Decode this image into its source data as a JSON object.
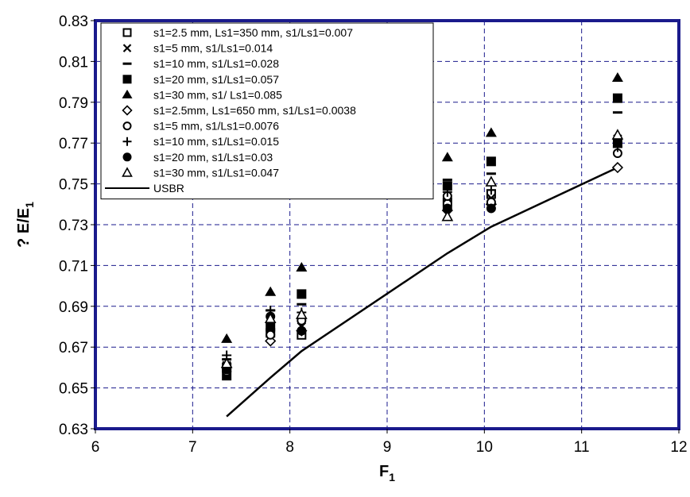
{
  "chart_data": {
    "type": "scatter",
    "title": "",
    "xlabel": "F",
    "xlabel_sub": "1",
    "ylabel": "? E/E",
    "ylabel_sub": "1",
    "xlim": [
      6,
      12
    ],
    "ylim": [
      0.63,
      0.83
    ],
    "xticks": [
      "6",
      "7",
      "8",
      "9",
      "10",
      "11",
      "12"
    ],
    "yticks": [
      "0.63",
      "0.65",
      "0.67",
      "0.69",
      "0.71",
      "0.73",
      "0.75",
      "0.77",
      "0.79",
      "0.81",
      "0.83"
    ],
    "grid": true,
    "legend_position": "top-left",
    "colors": {
      "plot_border": "#1a1a8c",
      "grid": "#1a1a8c",
      "marker": "#000000"
    },
    "series": [
      {
        "name": "s1=2.5 mm, Ls1=350 mm, s1/Ls1=0.007",
        "marker": "square-open",
        "points": [
          [
            7.35,
            0.66
          ],
          [
            7.8,
            0.677
          ],
          [
            8.12,
            0.676
          ],
          [
            9.62,
            0.741
          ],
          [
            10.07,
            0.745
          ],
          [
            11.37,
            0.77
          ]
        ]
      },
      {
        "name": "s1=5 mm, s1/Ls1=0.014",
        "marker": "x",
        "points": [
          [
            7.35,
            0.661
          ],
          [
            7.8,
            0.68
          ],
          [
            8.12,
            0.68
          ],
          [
            9.62,
            0.743
          ],
          [
            10.07,
            0.743
          ],
          [
            11.37,
            0.772
          ]
        ]
      },
      {
        "name": "s1=10 mm, s1/Ls1=0.028",
        "marker": "dash",
        "points": [
          [
            7.35,
            0.664
          ],
          [
            7.8,
            0.688
          ],
          [
            8.12,
            0.691
          ],
          [
            9.62,
            0.752
          ],
          [
            10.07,
            0.755
          ],
          [
            11.37,
            0.785
          ]
        ]
      },
      {
        "name": "s1=20 mm, s1/Ls1=0.057",
        "marker": "square-filled",
        "points": [
          [
            7.35,
            0.656
          ],
          [
            7.8,
            0.68
          ],
          [
            8.12,
            0.696
          ],
          [
            9.62,
            0.749
          ],
          [
            10.07,
            0.761
          ],
          [
            11.37,
            0.792
          ]
        ]
      },
      {
        "name": "s1=30 mm, s1/ Ls1=0.085",
        "marker": "triangle-filled",
        "points": [
          [
            7.35,
            0.674
          ],
          [
            7.8,
            0.697
          ],
          [
            8.12,
            0.709
          ],
          [
            9.62,
            0.763
          ],
          [
            10.07,
            0.775
          ],
          [
            11.37,
            0.802
          ]
        ]
      },
      {
        "name": "s1=2.5mm, Ls1=650 mm, s1/Ls1=0.0038",
        "marker": "diamond-open",
        "points": [
          [
            7.35,
            0.66
          ],
          [
            7.8,
            0.673
          ],
          [
            8.12,
            0.678
          ],
          [
            9.62,
            0.737
          ],
          [
            10.07,
            0.74
          ],
          [
            11.37,
            0.758
          ]
        ]
      },
      {
        "name": "s1=5 mm, s1/Ls1=0.0076",
        "marker": "circle-open",
        "points": [
          [
            7.35,
            0.658
          ],
          [
            7.8,
            0.676
          ],
          [
            8.12,
            0.683
          ],
          [
            9.62,
            0.744
          ],
          [
            10.07,
            0.741
          ],
          [
            11.37,
            0.765
          ]
        ]
      },
      {
        "name": "s1=10 mm, s1/Ls1=0.015",
        "marker": "plus",
        "points": [
          [
            7.35,
            0.666
          ],
          [
            7.8,
            0.688
          ],
          [
            8.12,
            0.687
          ],
          [
            9.62,
            0.746
          ],
          [
            10.07,
            0.747
          ],
          [
            11.37,
            0.768
          ]
        ]
      },
      {
        "name": "s1=20 mm, s1/Ls1=0.03",
        "marker": "circle-filled",
        "points": [
          [
            7.35,
            0.659
          ],
          [
            7.8,
            0.685
          ],
          [
            8.12,
            0.678
          ],
          [
            9.62,
            0.738
          ],
          [
            10.07,
            0.738
          ],
          [
            11.37,
            0.77
          ]
        ]
      },
      {
        "name": "s1=30 mm, s1/Ls1=0.047",
        "marker": "triangle-open",
        "points": [
          [
            7.35,
            0.662
          ],
          [
            7.8,
            0.684
          ],
          [
            8.12,
            0.686
          ],
          [
            9.62,
            0.734
          ],
          [
            10.07,
            0.751
          ],
          [
            11.37,
            0.774
          ]
        ]
      },
      {
        "name": "USBR",
        "marker": "line",
        "points": [
          [
            7.35,
            0.636
          ],
          [
            7.8,
            0.655
          ],
          [
            8.12,
            0.668
          ],
          [
            9.62,
            0.716
          ],
          [
            10.07,
            0.729
          ],
          [
            11.37,
            0.758
          ]
        ]
      }
    ]
  }
}
